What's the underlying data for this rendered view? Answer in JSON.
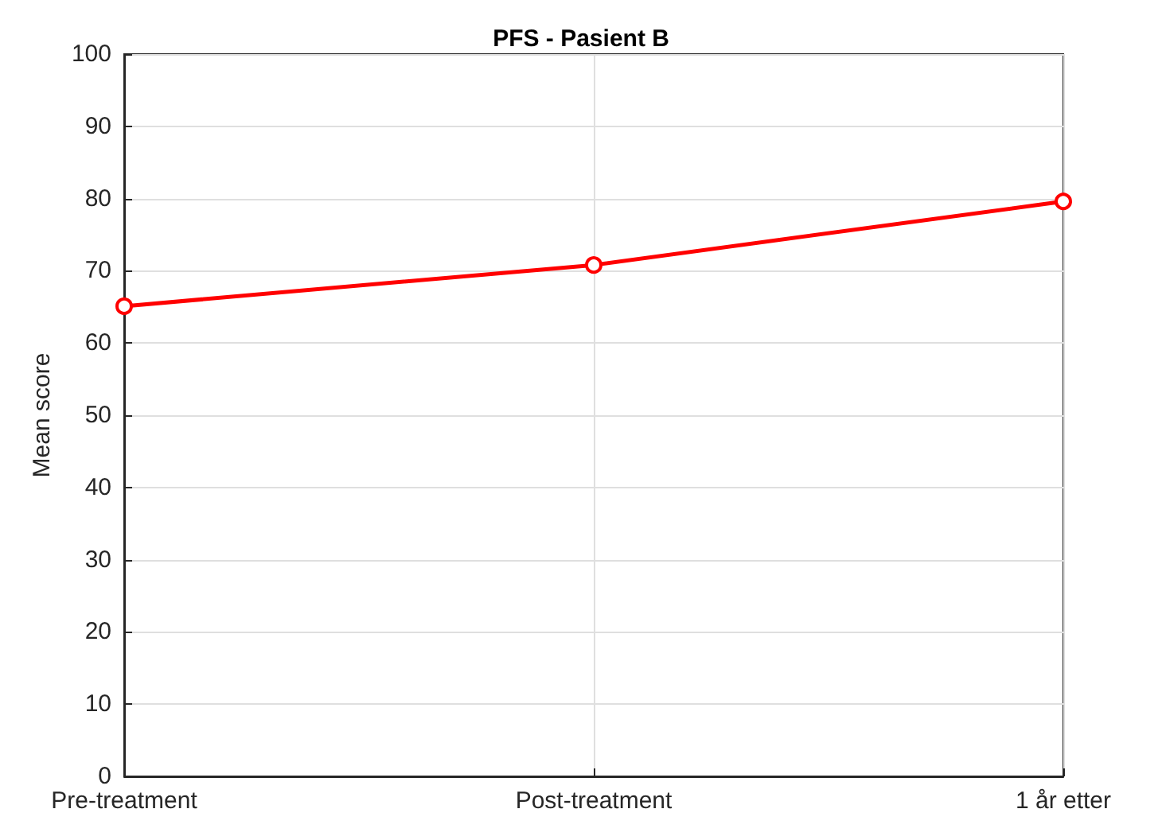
{
  "chart_data": {
    "type": "line",
    "title": "PFS - Pasient B",
    "ylabel": "Mean score",
    "categories": [
      "Pre-treatment",
      "Post-treatment",
      "1 år etter"
    ],
    "series": [
      {
        "color": "#ff0000",
        "values": [
          65.1,
          70.8,
          79.6
        ]
      }
    ],
    "ylim": [
      0,
      100
    ],
    "yticks": [
      0,
      10,
      20,
      30,
      40,
      50,
      60,
      70,
      80,
      90,
      100
    ],
    "grid": true,
    "marker": "circle",
    "line_style": "solid"
  }
}
